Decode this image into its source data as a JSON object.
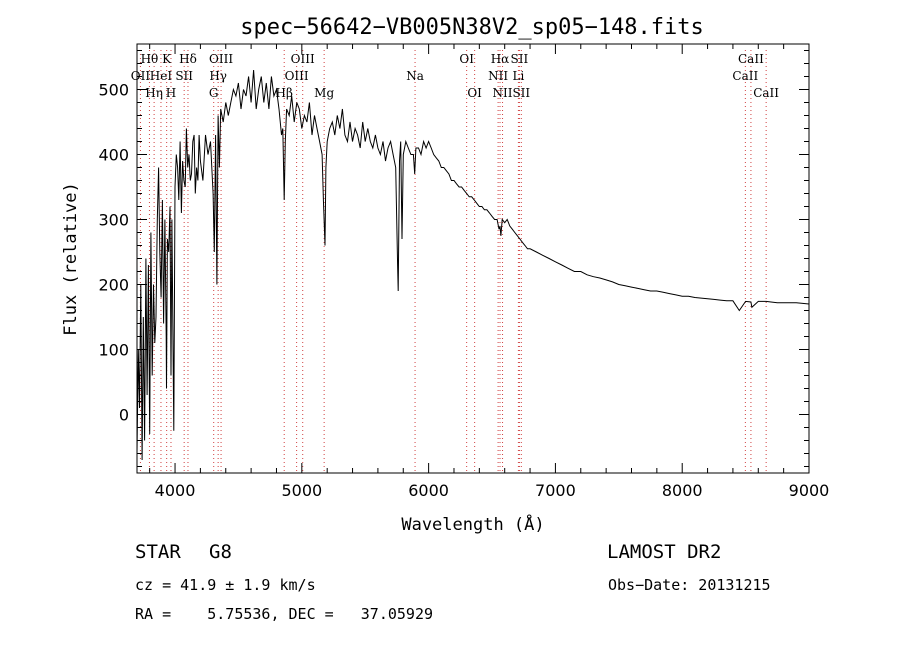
{
  "chart_data": {
    "type": "line",
    "title": "spec−56642−VB005N38V2_sp05−148.fits",
    "xlabel": "Wavelength (Å)",
    "ylabel": "Flux (relative)",
    "xlim": [
      3700,
      9000
    ],
    "ylim": [
      -90,
      570
    ],
    "x_ticks": [
      4000,
      5000,
      6000,
      7000,
      8000,
      9000
    ],
    "y_ticks": [
      0,
      100,
      200,
      300,
      400,
      500
    ],
    "grid": false,
    "series": [
      {
        "x": [
          3700,
          3710,
          3720,
          3730,
          3740,
          3750,
          3760,
          3770,
          3780,
          3790,
          3800,
          3810,
          3820,
          3830,
          3840,
          3850,
          3860,
          3870,
          3880,
          3890,
          3900,
          3910,
          3920,
          3930,
          3933,
          3940,
          3950,
          3960,
          3968,
          3975,
          3990,
          4000,
          4010,
          4020,
          4030,
          4040,
          4050,
          4060,
          4070,
          4080,
          4090,
          4100,
          4110,
          4120,
          4130,
          4140,
          4150,
          4160,
          4170,
          4180,
          4190,
          4200,
          4220,
          4240,
          4260,
          4280,
          4300,
          4310,
          4320,
          4330,
          4340,
          4350,
          4360,
          4380,
          4400,
          4420,
          4440,
          4460,
          4480,
          4500,
          4520,
          4540,
          4560,
          4580,
          4600,
          4620,
          4640,
          4660,
          4680,
          4700,
          4720,
          4740,
          4760,
          4780,
          4800,
          4820,
          4840,
          4850,
          4861,
          4870,
          4880,
          4900,
          4920,
          4940,
          4960,
          4980,
          5000,
          5020,
          5040,
          5060,
          5080,
          5100,
          5120,
          5140,
          5160,
          5170,
          5183,
          5190,
          5200,
          5220,
          5240,
          5260,
          5280,
          5300,
          5320,
          5340,
          5360,
          5380,
          5400,
          5420,
          5440,
          5460,
          5480,
          5500,
          5520,
          5540,
          5560,
          5580,
          5600,
          5620,
          5640,
          5660,
          5680,
          5700,
          5720,
          5740,
          5755,
          5760,
          5770,
          5780,
          5790,
          5800,
          5820,
          5840,
          5860,
          5880,
          5890,
          5900,
          5920,
          5940,
          5960,
          5980,
          6000,
          6020,
          6040,
          6060,
          6080,
          6100,
          6120,
          6140,
          6160,
          6180,
          6200,
          6220,
          6240,
          6260,
          6280,
          6300,
          6320,
          6340,
          6360,
          6380,
          6400,
          6420,
          6440,
          6460,
          6480,
          6500,
          6520,
          6540,
          6555,
          6563,
          6570,
          6580,
          6600,
          6620,
          6640,
          6660,
          6680,
          6700,
          6720,
          6740,
          6760,
          6780,
          6800,
          6850,
          6900,
          6950,
          7000,
          7050,
          7100,
          7150,
          7200,
          7250,
          7300,
          7350,
          7400,
          7450,
          7500,
          7550,
          7600,
          7650,
          7700,
          7750,
          7800,
          7850,
          7900,
          7950,
          8000,
          8050,
          8100,
          8150,
          8200,
          8250,
          8300,
          8350,
          8400,
          8450,
          8500,
          8542,
          8550,
          8600,
          8662,
          8700,
          8750,
          8800,
          8850,
          8900,
          8950,
          9000
        ],
        "y": [
          -60,
          100,
          10,
          200,
          -70,
          150,
          -40,
          240,
          30,
          230,
          -30,
          280,
          60,
          200,
          110,
          150,
          300,
          380,
          250,
          180,
          330,
          140,
          300,
          120,
          40,
          270,
          250,
          320,
          60,
          300,
          -25,
          350,
          400,
          380,
          330,
          420,
          310,
          390,
          360,
          350,
          440,
          380,
          400,
          360,
          370,
          420,
          430,
          340,
          380,
          360,
          430,
          390,
          360,
          430,
          400,
          420,
          340,
          250,
          430,
          200,
          460,
          380,
          470,
          450,
          480,
          460,
          480,
          500,
          490,
          510,
          470,
          500,
          490,
          520,
          480,
          530,
          470,
          500,
          520,
          480,
          510,
          470,
          520,
          490,
          500,
          470,
          430,
          440,
          330,
          420,
          470,
          460,
          490,
          450,
          480,
          470,
          440,
          460,
          450,
          480,
          430,
          460,
          440,
          420,
          400,
          330,
          260,
          380,
          420,
          440,
          450,
          430,
          460,
          440,
          470,
          430,
          420,
          450,
          420,
          440,
          430,
          410,
          450,
          420,
          440,
          420,
          410,
          430,
          410,
          400,
          420,
          390,
          410,
          420,
          400,
          380,
          230,
          190,
          390,
          420,
          270,
          400,
          420,
          410,
          400,
          400,
          370,
          410,
          410,
          400,
          420,
          410,
          420,
          410,
          400,
          395,
          390,
          380,
          380,
          375,
          370,
          360,
          360,
          355,
          350,
          350,
          345,
          340,
          335,
          335,
          330,
          325,
          320,
          320,
          315,
          315,
          310,
          305,
          300,
          300,
          285,
          290,
          275,
          300,
          295,
          300,
          290,
          285,
          280,
          275,
          270,
          265,
          260,
          255,
          255,
          250,
          245,
          240,
          235,
          230,
          225,
          220,
          220,
          215,
          212,
          210,
          207,
          204,
          200,
          198,
          196,
          194,
          192,
          190,
          190,
          188,
          186,
          184,
          182,
          182,
          180,
          179,
          178,
          177,
          176,
          175,
          175,
          160,
          174,
          173,
          165,
          174,
          174,
          173,
          172,
          172,
          172,
          172,
          171,
          170
        ]
      }
    ],
    "line_markers": [
      {
        "label": "Hθ",
        "wavelength": 3798,
        "row": 0
      },
      {
        "label": "OII",
        "wavelength": 3727,
        "row": 1
      },
      {
        "label": "Hη",
        "wavelength": 3835,
        "row": 2
      },
      {
        "label": "K",
        "wavelength": 3934,
        "row": 0
      },
      {
        "label": "HeI",
        "wavelength": 3889,
        "row": 1
      },
      {
        "label": "H",
        "wavelength": 3968,
        "row": 2
      },
      {
        "label": "Hδ",
        "wavelength": 4102,
        "row": 0
      },
      {
        "label": "SII",
        "wavelength": 4072,
        "row": 1
      },
      {
        "label": "OIII",
        "wavelength": 4363,
        "row": 0
      },
      {
        "label": "Hγ",
        "wavelength": 4340,
        "row": 1
      },
      {
        "label": "G",
        "wavelength": 4305,
        "row": 2
      },
      {
        "label": "Hβ",
        "wavelength": 4861,
        "row": 2
      },
      {
        "label": "OIII",
        "wavelength": 4959,
        "row": 1
      },
      {
        "label": "OIII",
        "wavelength": 5007,
        "row": 0
      },
      {
        "label": "Mg",
        "wavelength": 5176,
        "row": 2
      },
      {
        "label": "Na",
        "wavelength": 5893,
        "row": 1
      },
      {
        "label": "OI",
        "wavelength": 6300,
        "row": 0
      },
      {
        "label": "OI",
        "wavelength": 6363,
        "row": 2
      },
      {
        "label": "Hα",
        "wavelength": 6563,
        "row": 0
      },
      {
        "label": "NII",
        "wavelength": 6548,
        "row": 1
      },
      {
        "label": "NII",
        "wavelength": 6583,
        "row": 2
      },
      {
        "label": "SII",
        "wavelength": 6716,
        "row": 0
      },
      {
        "label": "Li",
        "wavelength": 6708,
        "row": 1
      },
      {
        "label": "SII",
        "wavelength": 6731,
        "row": 2
      },
      {
        "label": "CaII",
        "wavelength": 8542,
        "row": 0
      },
      {
        "label": "CaII",
        "wavelength": 8498,
        "row": 1
      },
      {
        "label": "CaII",
        "wavelength": 8662,
        "row": 2
      }
    ]
  },
  "info": {
    "object_class": "STAR",
    "subclass": "G8",
    "survey": "LAMOST DR2",
    "redshift": "cz = 41.9 ± 1.9 km/s",
    "obs_date": "Obs−Date: 20131215",
    "coords": "RA =    5.75536, DEC =   37.05929"
  },
  "colors": {
    "spectrum": "#000000",
    "marker": "#d04040",
    "background": "#ffffff"
  }
}
